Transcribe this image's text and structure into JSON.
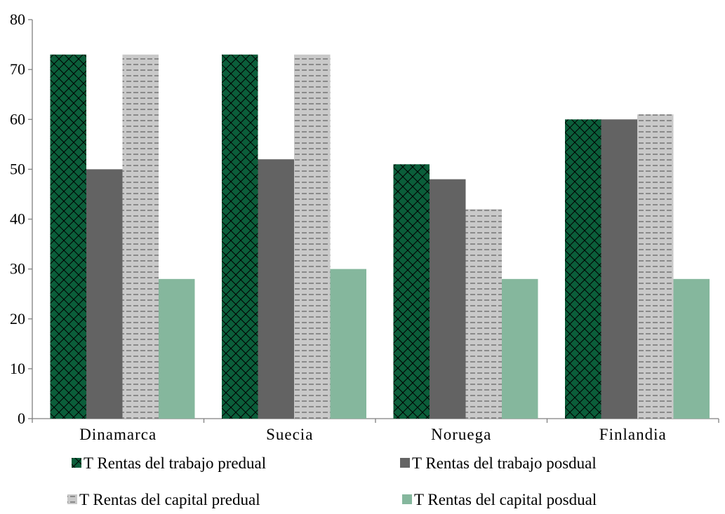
{
  "chart_data": {
    "type": "bar",
    "categories": [
      "Dinamarca",
      "Suecia",
      "Noruega",
      "Finlandia"
    ],
    "series": [
      {
        "name": "T Rentas del trabajo predual",
        "values": [
          73,
          73,
          51,
          60
        ],
        "color": "#0b5e3a",
        "pattern": "crosshatch"
      },
      {
        "name": "T Rentas del trabajo posdual",
        "values": [
          50,
          52,
          48,
          60
        ],
        "color": "#636363",
        "pattern": "solid"
      },
      {
        "name": "T Rentas del capital predual",
        "values": [
          73,
          73,
          42,
          61
        ],
        "color": "#c9c9c9",
        "pattern": "dashed-horizontal"
      },
      {
        "name": "T Rentas del capital posdual",
        "values": [
          28,
          30,
          28,
          28
        ],
        "color": "#85b79d",
        "pattern": "solid"
      }
    ],
    "yticks": [
      "0",
      "10",
      "20",
      "30",
      "40",
      "50",
      "60",
      "70",
      "80"
    ],
    "ylim": [
      0,
      80
    ],
    "grid": false,
    "legend_position": "bottom"
  }
}
